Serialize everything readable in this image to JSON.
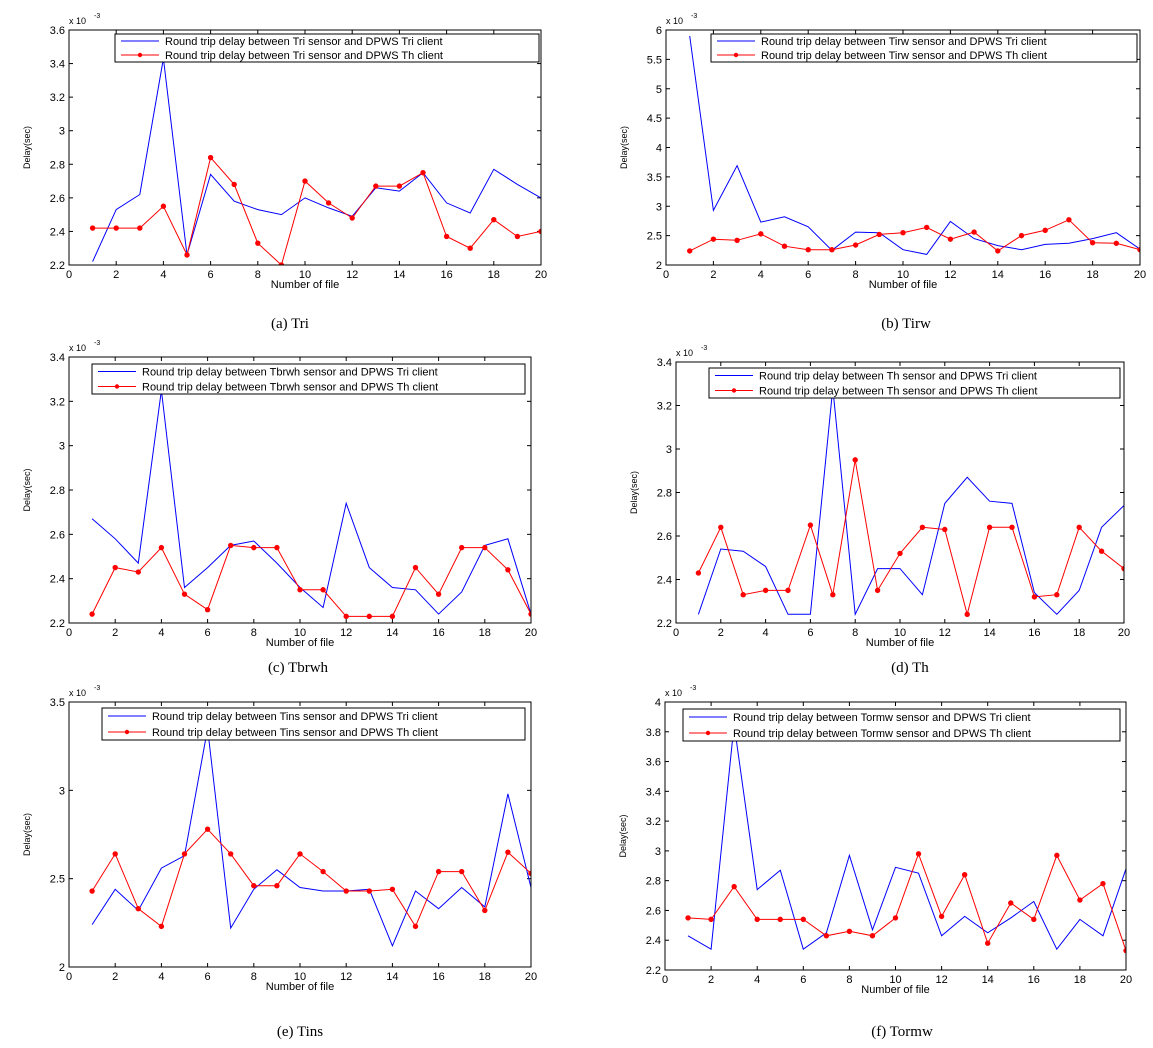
{
  "figure": {
    "series_colors": [
      "#0000ff",
      "#ff0000"
    ],
    "axis_color": "#000000"
  },
  "chart_data": [
    {
      "type": "line",
      "panel": "a",
      "caption": "(a) Tri",
      "xlabel": "Number of file",
      "ylabel": "Delay(sec)",
      "y_multiplier": "x 10",
      "y_exponent": "-3",
      "xlim": [
        0,
        20
      ],
      "ylim": [
        2.2,
        3.6
      ],
      "xticks": [
        0,
        2,
        4,
        6,
        8,
        10,
        12,
        14,
        16,
        18,
        20
      ],
      "yticks": [
        2.2,
        2.4,
        2.6,
        2.8,
        3,
        3.2,
        3.4,
        3.6
      ],
      "ytick_labels": [
        "2.2",
        "2.4",
        "2.6",
        "2.8",
        "3",
        "3.2",
        "3.4",
        "3.6"
      ],
      "legend_position": "top-right",
      "x": [
        1,
        2,
        3,
        4,
        5,
        6,
        7,
        8,
        9,
        10,
        11,
        12,
        13,
        14,
        15,
        16,
        17,
        18,
        19,
        20
      ],
      "series": [
        {
          "name": "Round trip delay between Tri sensor and DPWS Tri client",
          "marker": false,
          "values": [
            2.22,
            2.53,
            2.62,
            3.43,
            2.26,
            2.74,
            2.58,
            2.53,
            2.5,
            2.6,
            2.54,
            2.49,
            2.66,
            2.64,
            2.75,
            2.57,
            2.51,
            2.77,
            2.68,
            2.6
          ]
        },
        {
          "name": "Round trip delay between Tri sensor and DPWS Th client",
          "marker": true,
          "values": [
            2.42,
            2.42,
            2.42,
            2.55,
            2.26,
            2.84,
            2.68,
            2.33,
            2.2,
            2.7,
            2.57,
            2.48,
            2.67,
            2.67,
            2.75,
            2.37,
            2.3,
            2.47,
            2.37,
            2.4
          ]
        }
      ]
    },
    {
      "type": "line",
      "panel": "b",
      "caption": "(b) Tirw",
      "xlabel": "Number of file",
      "ylabel": "Delay(sec)",
      "y_multiplier": "x 10",
      "y_exponent": "-3",
      "xlim": [
        0,
        20
      ],
      "ylim": [
        2,
        6
      ],
      "xticks": [
        0,
        2,
        4,
        6,
        8,
        10,
        12,
        14,
        16,
        18,
        20
      ],
      "yticks": [
        2,
        2.5,
        3,
        3.5,
        4,
        4.5,
        5,
        5.5,
        6
      ],
      "ytick_labels": [
        "2",
        "2.5",
        "3",
        "3.5",
        "4",
        "4.5",
        "5",
        "5.5",
        "6"
      ],
      "legend_position": "top-right",
      "x": [
        1,
        2,
        3,
        4,
        5,
        6,
        7,
        8,
        9,
        10,
        11,
        12,
        13,
        14,
        15,
        16,
        17,
        18,
        19,
        20
      ],
      "series": [
        {
          "name": "Round trip delay between Tirw sensor and DPWS Tri client",
          "marker": false,
          "values": [
            5.9,
            2.93,
            3.69,
            2.73,
            2.82,
            2.65,
            2.25,
            2.56,
            2.55,
            2.26,
            2.18,
            2.74,
            2.45,
            2.33,
            2.26,
            2.35,
            2.37,
            2.45,
            2.55,
            2.27
          ]
        },
        {
          "name": "Round trip delay between Tirw sensor and DPWS Th client",
          "marker": true,
          "values": [
            2.24,
            2.44,
            2.42,
            2.53,
            2.32,
            2.26,
            2.26,
            2.34,
            2.52,
            2.55,
            2.64,
            2.44,
            2.56,
            2.24,
            2.5,
            2.59,
            2.77,
            2.38,
            2.37,
            2.26
          ]
        }
      ]
    },
    {
      "type": "line",
      "panel": "c",
      "caption": "(c) Tbrwh",
      "xlabel": "Number of file",
      "ylabel": "Delay(sec)",
      "y_multiplier": "x 10",
      "y_exponent": "-3",
      "xlim": [
        0,
        20
      ],
      "ylim": [
        2.2,
        3.4
      ],
      "xticks": [
        0,
        2,
        4,
        6,
        8,
        10,
        12,
        14,
        16,
        18,
        20
      ],
      "yticks": [
        2.2,
        2.4,
        2.6,
        2.8,
        3,
        3.2,
        3.4
      ],
      "ytick_labels": [
        "2.2",
        "2.4",
        "2.6",
        "2.8",
        "3",
        "3.2",
        "3.4"
      ],
      "legend_position": "top-right",
      "x": [
        1,
        2,
        3,
        4,
        5,
        6,
        7,
        8,
        9,
        10,
        11,
        12,
        13,
        14,
        15,
        16,
        17,
        18,
        19,
        20
      ],
      "series": [
        {
          "name": "Round trip delay between Tbrwh sensor and DPWS Tri client",
          "marker": false,
          "values": [
            2.67,
            2.58,
            2.47,
            3.25,
            2.36,
            2.45,
            2.55,
            2.57,
            2.47,
            2.36,
            2.27,
            2.74,
            2.45,
            2.36,
            2.35,
            2.24,
            2.34,
            2.55,
            2.58,
            2.24
          ]
        },
        {
          "name": "Round trip delay between Tbrwh sensor and DPWS Th client",
          "marker": true,
          "values": [
            2.24,
            2.45,
            2.43,
            2.54,
            2.33,
            2.26,
            2.55,
            2.54,
            2.54,
            2.35,
            2.35,
            2.23,
            2.23,
            2.23,
            2.45,
            2.33,
            2.54,
            2.54,
            2.44,
            2.24
          ]
        }
      ]
    },
    {
      "type": "line",
      "panel": "d",
      "caption": "(d) Th",
      "xlabel": "Number of file",
      "ylabel": "Delay(sec)",
      "y_multiplier": "x 10",
      "y_exponent": "-3",
      "xlim": [
        0,
        20
      ],
      "ylim": [
        2.2,
        3.4
      ],
      "xticks": [
        0,
        2,
        4,
        6,
        8,
        10,
        12,
        14,
        16,
        18,
        20
      ],
      "yticks": [
        2.2,
        2.4,
        2.6,
        2.8,
        3,
        3.2,
        3.4
      ],
      "ytick_labels": [
        "2.2",
        "2.4",
        "2.6",
        "2.8",
        "3",
        "3.2",
        "3.4"
      ],
      "legend_position": "top-right",
      "x": [
        1,
        2,
        3,
        4,
        5,
        6,
        7,
        8,
        9,
        10,
        11,
        12,
        13,
        14,
        15,
        16,
        17,
        18,
        19,
        20
      ],
      "series": [
        {
          "name": "Round trip delay between Th sensor and DPWS Tri client",
          "marker": false,
          "values": [
            2.24,
            2.54,
            2.53,
            2.46,
            2.24,
            2.24,
            3.28,
            2.24,
            2.45,
            2.45,
            2.33,
            2.75,
            2.87,
            2.76,
            2.75,
            2.34,
            2.24,
            2.35,
            2.64,
            2.74
          ]
        },
        {
          "name": "Round trip delay between Th sensor and DPWS Th client",
          "marker": true,
          "values": [
            2.43,
            2.64,
            2.33,
            2.35,
            2.35,
            2.65,
            2.33,
            2.95,
            2.35,
            2.52,
            2.64,
            2.63,
            2.24,
            2.64,
            2.64,
            2.32,
            2.33,
            2.64,
            2.53,
            2.45
          ]
        }
      ]
    },
    {
      "type": "line",
      "panel": "e",
      "caption": "(e) Tins",
      "xlabel": "Number of file",
      "ylabel": "Delay(sec)",
      "y_multiplier": "x 10",
      "y_exponent": "-3",
      "xlim": [
        0,
        20
      ],
      "ylim": [
        2,
        3.5
      ],
      "xticks": [
        0,
        2,
        4,
        6,
        8,
        10,
        12,
        14,
        16,
        18,
        20
      ],
      "yticks": [
        2,
        2.5,
        3,
        3.5
      ],
      "ytick_labels": [
        "2",
        "2.5",
        "3",
        "3.5"
      ],
      "legend_position": "top-right",
      "x": [
        1,
        2,
        3,
        4,
        5,
        6,
        7,
        8,
        9,
        10,
        11,
        12,
        13,
        14,
        15,
        16,
        17,
        18,
        19,
        20
      ],
      "series": [
        {
          "name": "Round trip delay between Tins sensor and DPWS Tri client",
          "marker": false,
          "values": [
            2.24,
            2.44,
            2.32,
            2.56,
            2.63,
            3.35,
            2.22,
            2.44,
            2.55,
            2.45,
            2.43,
            2.43,
            2.44,
            2.12,
            2.43,
            2.33,
            2.45,
            2.34,
            2.98,
            2.45
          ]
        },
        {
          "name": "Round trip delay between Tins sensor and DPWS Th client",
          "marker": true,
          "values": [
            2.43,
            2.64,
            2.33,
            2.23,
            2.64,
            2.78,
            2.64,
            2.46,
            2.46,
            2.64,
            2.54,
            2.43,
            2.43,
            2.44,
            2.23,
            2.54,
            2.54,
            2.32,
            2.65,
            2.53
          ]
        }
      ]
    },
    {
      "type": "line",
      "panel": "f",
      "caption": "(f) Tormw",
      "xlabel": "Number of file",
      "ylabel": "Delay(sec)",
      "y_multiplier": "x 10",
      "y_exponent": "-3",
      "xlim": [
        0,
        20
      ],
      "ylim": [
        2.2,
        4
      ],
      "xticks": [
        0,
        2,
        4,
        6,
        8,
        10,
        12,
        14,
        16,
        18,
        20
      ],
      "yticks": [
        2.2,
        2.4,
        2.6,
        2.8,
        3,
        3.2,
        3.4,
        3.6,
        3.8,
        4
      ],
      "ytick_labels": [
        "2.2",
        "2.4",
        "2.6",
        "2.8",
        "3",
        "3.2",
        "3.4",
        "3.6",
        "3.8",
        "4"
      ],
      "legend_position": "top-right",
      "x": [
        1,
        2,
        3,
        4,
        5,
        6,
        7,
        8,
        9,
        10,
        11,
        12,
        13,
        14,
        15,
        16,
        17,
        18,
        19,
        20
      ],
      "series": [
        {
          "name": "Round trip delay between Tormw sensor and DPWS Tri client",
          "marker": false,
          "values": [
            2.43,
            2.34,
            3.85,
            2.74,
            2.87,
            2.34,
            2.45,
            2.97,
            2.47,
            2.89,
            2.85,
            2.43,
            2.56,
            2.45,
            2.55,
            2.66,
            2.34,
            2.54,
            2.43,
            2.88
          ]
        },
        {
          "name": "Round trip delay between Tormw sensor and DPWS Th client",
          "marker": true,
          "values": [
            2.55,
            2.54,
            2.76,
            2.54,
            2.54,
            2.54,
            2.43,
            2.46,
            2.43,
            2.55,
            2.98,
            2.56,
            2.84,
            2.38,
            2.65,
            2.54,
            2.97,
            2.67,
            2.78,
            2.33
          ]
        }
      ]
    }
  ]
}
